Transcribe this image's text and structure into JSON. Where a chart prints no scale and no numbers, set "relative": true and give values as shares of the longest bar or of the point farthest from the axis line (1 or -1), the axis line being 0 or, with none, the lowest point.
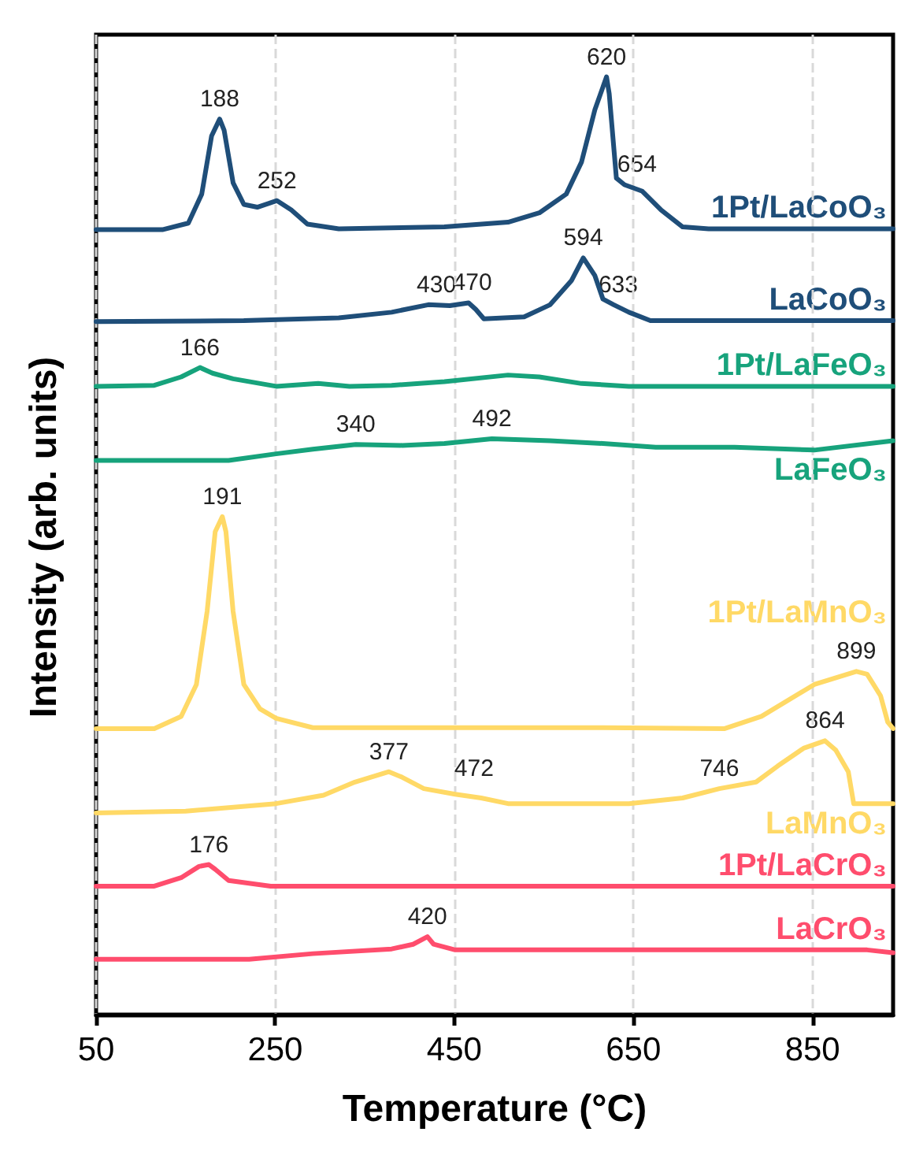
{
  "chart_data": {
    "type": "line",
    "xlabel": "Temperature (°C)",
    "ylabel": "Intensity (arb. units)",
    "relative": true,
    "xlim": [
      50,
      940
    ],
    "xticks": [
      50,
      250,
      450,
      650,
      850
    ],
    "grid": "x",
    "legend": false,
    "marker": "none",
    "line_style": "solid",
    "series": [
      {
        "name": "1Pt/LaCoO₃",
        "color": "#1f4e79",
        "x": [
          50,
          124,
          153,
          168,
          179,
          188,
          193,
          203,
          215,
          230,
          252,
          268,
          286,
          321,
          439,
          510,
          545,
          575,
          592,
          607,
          620,
          623,
          631,
          640,
          660,
          681,
          705,
          734,
          940
        ],
        "values": [
          0.837,
          0.837,
          0.844,
          0.875,
          0.937,
          0.955,
          0.943,
          0.887,
          0.864,
          0.861,
          0.868,
          0.858,
          0.843,
          0.838,
          0.84,
          0.845,
          0.855,
          0.875,
          0.909,
          0.965,
          1,
          0.982,
          0.892,
          0.885,
          0.878,
          0.858,
          0.84,
          0.838,
          0.838
        ]
      },
      {
        "name": "LaCoO₃",
        "color": "#1f4e79",
        "x": [
          50,
          215,
          321,
          380,
          421,
          445,
          466,
          474,
          483,
          528,
          557,
          581,
          594,
          607,
          616,
          628,
          645,
          669,
          940
        ],
        "values": [
          0.739,
          0.74,
          0.743,
          0.749,
          0.757,
          0.756,
          0.759,
          0.752,
          0.742,
          0.744,
          0.757,
          0.783,
          0.807,
          0.788,
          0.763,
          0.757,
          0.749,
          0.74,
          0.74
        ]
      },
      {
        "name": "1Pt/LaFeO₃",
        "color": "#17a37c",
        "x": [
          50,
          115,
          145,
          166,
          180,
          203,
          251,
          298,
          333,
          380,
          439,
          510,
          545,
          592,
          645,
          940
        ],
        "values": [
          0.67,
          0.671,
          0.68,
          0.69,
          0.684,
          0.678,
          0.67,
          0.673,
          0.67,
          0.671,
          0.675,
          0.682,
          0.68,
          0.673,
          0.67,
          0.67
        ]
      },
      {
        "name": "LaFeO₃",
        "color": "#17a37c",
        "x": [
          50,
          198,
          251,
          292,
          340,
          392,
          439,
          492,
          557,
          616,
          675,
          763,
          852,
          940
        ],
        "values": [
          0.591,
          0.591,
          0.598,
          0.603,
          0.608,
          0.607,
          0.609,
          0.614,
          0.612,
          0.609,
          0.605,
          0.605,
          0.602,
          0.612
        ]
      },
      {
        "name": "1Pt/LaMnO₃",
        "color": "#ffd966",
        "x": [
          50,
          115,
          145,
          162,
          174,
          183,
          191,
          195,
          203,
          215,
          233,
          251,
          292,
          380,
          616,
          752,
          793,
          852,
          899,
          911,
          926,
          934,
          940
        ],
        "values": [
          0.305,
          0.305,
          0.318,
          0.352,
          0.43,
          0.515,
          0.531,
          0.515,
          0.43,
          0.352,
          0.326,
          0.316,
          0.306,
          0.306,
          0.306,
          0.305,
          0.318,
          0.352,
          0.366,
          0.363,
          0.34,
          0.312,
          0.305
        ]
      },
      {
        "name": "LaMnO₃",
        "color": "#ffd966",
        "x": [
          50,
          150,
          251,
          304,
          339,
          377,
          392,
          416,
          451,
          480,
          510,
          645,
          705,
          746,
          787,
          811,
          840,
          864,
          876,
          890,
          896,
          940
        ],
        "values": [
          0.215,
          0.217,
          0.225,
          0.234,
          0.248,
          0.259,
          0.253,
          0.241,
          0.235,
          0.231,
          0.225,
          0.225,
          0.231,
          0.241,
          0.248,
          0.265,
          0.284,
          0.292,
          0.282,
          0.259,
          0.225,
          0.225
        ]
      },
      {
        "name": "1Pt/LaCrO₃",
        "color": "#ff4d6d",
        "x": [
          50,
          115,
          145,
          165,
          176,
          183,
          198,
          245,
          940
        ],
        "values": [
          0.137,
          0.137,
          0.146,
          0.158,
          0.16,
          0.155,
          0.143,
          0.137,
          0.137
        ]
      },
      {
        "name": "LaCrO₃",
        "color": "#ff4d6d",
        "x": [
          50,
          221,
          292,
          380,
          404,
          420,
          427,
          451,
          911,
          940
        ],
        "values": [
          0.059,
          0.059,
          0.065,
          0.07,
          0.075,
          0.083,
          0.075,
          0.069,
          0.069,
          0.066
        ]
      }
    ],
    "annotations": [
      {
        "text": "188",
        "x": 188,
        "y": 0.955
      },
      {
        "text": "252",
        "x": 252,
        "y": 0.868
      },
      {
        "text": "620",
        "x": 620,
        "y": 1
      },
      {
        "text": "654",
        "x": 654,
        "y": 0.885
      },
      {
        "text": "430",
        "x": 430,
        "y": 0.757
      },
      {
        "text": "470",
        "x": 470,
        "y": 0.759
      },
      {
        "text": "594",
        "x": 594,
        "y": 0.807
      },
      {
        "text": "633",
        "x": 633,
        "y": 0.757
      },
      {
        "text": "166",
        "x": 166,
        "y": 0.69
      },
      {
        "text": "340",
        "x": 340,
        "y": 0.608
      },
      {
        "text": "492",
        "x": 492,
        "y": 0.614
      },
      {
        "text": "191",
        "x": 191,
        "y": 0.531
      },
      {
        "text": "899",
        "x": 899,
        "y": 0.366
      },
      {
        "text": "377",
        "x": 377,
        "y": 0.259
      },
      {
        "text": "472",
        "x": 472,
        "y": 0.241
      },
      {
        "text": "746",
        "x": 746,
        "y": 0.241
      },
      {
        "text": "864",
        "x": 864,
        "y": 0.292
      },
      {
        "text": "176",
        "x": 176,
        "y": 0.16
      },
      {
        "text": "420",
        "x": 420,
        "y": 0.083
      }
    ]
  }
}
